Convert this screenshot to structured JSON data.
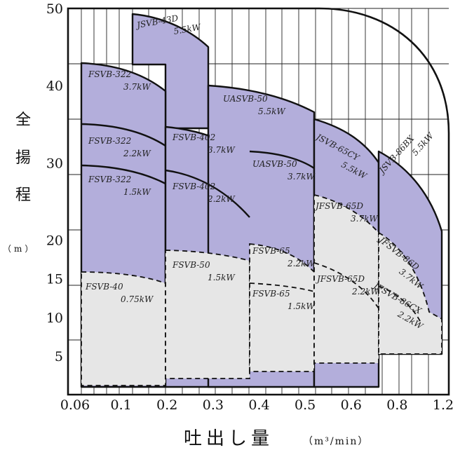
{
  "colors": {
    "upper_fill": "#b3aedb",
    "lower_fill": "#e6e6e6",
    "outline": "#111111",
    "grid": "#222222"
  },
  "chart_data": {
    "type": "area",
    "title": "",
    "xlabel": "吐出し量",
    "xunit": "（m³/min）",
    "ylabel": [
      "全",
      "揚",
      "程"
    ],
    "yunit": "（m）",
    "ylim": [
      0,
      50
    ],
    "x_ticks": [
      "0.06",
      "0.1",
      "0.2",
      "0.3",
      "0.4",
      "0.5",
      "0.6",
      "0.8",
      "1.2"
    ],
    "y_ticks": [
      "5",
      "10",
      "15",
      "20",
      "30",
      "40",
      "50"
    ],
    "grid": true,
    "regions": [
      {
        "label": "JSVB-43D",
        "power": "5.5kW",
        "type": "upper"
      },
      {
        "label": "FSVB-322",
        "power": "3.7kW",
        "type": "upper"
      },
      {
        "label": "FSVB-322",
        "power": "2.2kW",
        "type": "upper"
      },
      {
        "label": "FSVB-322",
        "power": "1.5kW",
        "type": "upper"
      },
      {
        "label": "FSVB-402",
        "power": "3.7kW",
        "type": "upper"
      },
      {
        "label": "FSVB-402",
        "power": "2.2kW",
        "type": "upper"
      },
      {
        "label": "UASVB-50",
        "power": "5.5kW",
        "type": "upper"
      },
      {
        "label": "UASVB-50",
        "power": "3.7kW",
        "type": "upper"
      },
      {
        "label": "JSVB-65CY",
        "power": "5.5kW",
        "type": "upper"
      },
      {
        "label": "JSVB-86BX",
        "power": "5.5kW",
        "type": "upper"
      },
      {
        "label": "FSVB-40",
        "power": "0.75kW",
        "type": "lower"
      },
      {
        "label": "FSVB-50",
        "power": "1.5kW",
        "type": "lower"
      },
      {
        "label": "FSVB-65",
        "power": "2.2kW",
        "type": "lower"
      },
      {
        "label": "FSVB-65",
        "power": "1.5kW",
        "type": "lower"
      },
      {
        "label": "JFSVB-65D",
        "power": "3.7kW",
        "type": "lower"
      },
      {
        "label": "JFSVB-65D",
        "power": "2.2kW",
        "type": "lower"
      },
      {
        "label": "JFSVB-86D",
        "power": "3.7kW",
        "type": "lower"
      },
      {
        "label": "JFSVB-86CX",
        "power": "2.2kW",
        "type": "lower"
      }
    ]
  }
}
